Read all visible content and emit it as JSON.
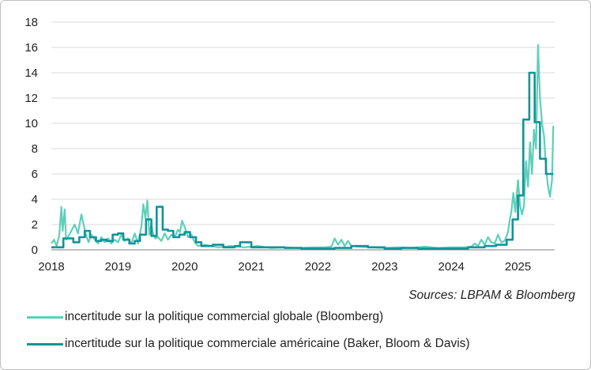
{
  "chart_data": {
    "type": "line",
    "ylim": [
      0,
      18
    ],
    "yticks": [
      "0",
      "2",
      "4",
      "6",
      "8",
      "10",
      "12",
      "14",
      "16",
      "18"
    ],
    "xlim": [
      2018.0,
      2025.55
    ],
    "xticks": [
      "2018",
      "2019",
      "2020",
      "2021",
      "2022",
      "2023",
      "2024",
      "2025"
    ],
    "grid": "horizontal",
    "legend_position": "bottom-left",
    "series": [
      {
        "name": "incertitude sur la politique commercial globale (Bloomberg)",
        "color": "#5fcfb8",
        "x": [
          2018.0,
          2018.04,
          2018.08,
          2018.12,
          2018.15,
          2018.17,
          2018.2,
          2018.22,
          2018.25,
          2018.3,
          2018.35,
          2018.4,
          2018.45,
          2018.5,
          2018.53,
          2018.56,
          2018.6,
          2018.65,
          2018.7,
          2018.75,
          2018.8,
          2018.85,
          2018.9,
          2018.95,
          2019.0,
          2019.05,
          2019.1,
          2019.15,
          2019.2,
          2019.25,
          2019.3,
          2019.35,
          2019.38,
          2019.41,
          2019.44,
          2019.47,
          2019.5,
          2019.53,
          2019.56,
          2019.6,
          2019.65,
          2019.7,
          2019.75,
          2019.8,
          2019.85,
          2019.9,
          2019.93,
          2019.96,
          2020.0,
          2020.05,
          2020.1,
          2020.15,
          2020.2,
          2020.3,
          2020.5,
          2020.7,
          2020.9,
          2021.1,
          2021.3,
          2021.5,
          2021.7,
          2021.9,
          2022.1,
          2022.2,
          2022.25,
          2022.3,
          2022.35,
          2022.4,
          2022.45,
          2022.5,
          2022.6,
          2022.8,
          2023.0,
          2023.2,
          2023.4,
          2023.6,
          2023.8,
          2024.0,
          2024.2,
          2024.3,
          2024.35,
          2024.4,
          2024.45,
          2024.5,
          2024.55,
          2024.6,
          2024.65,
          2024.7,
          2024.75,
          2024.8,
          2024.85,
          2024.88,
          2024.9,
          2024.93,
          2024.96,
          2025.0,
          2025.03,
          2025.06,
          2025.09,
          2025.12,
          2025.15,
          2025.18,
          2025.21,
          2025.24,
          2025.27,
          2025.3,
          2025.33,
          2025.36,
          2025.39,
          2025.42,
          2025.45,
          2025.48,
          2025.51,
          2025.53
        ],
        "values": [
          0.5,
          0.8,
          0.3,
          1.2,
          3.4,
          1.5,
          3.2,
          0.8,
          1.0,
          1.5,
          2.0,
          1.3,
          2.8,
          1.6,
          1.0,
          0.6,
          1.2,
          0.8,
          0.5,
          1.0,
          0.6,
          0.9,
          0.5,
          0.8,
          0.6,
          1.2,
          0.7,
          0.9,
          0.5,
          1.3,
          0.5,
          1.8,
          3.6,
          2.5,
          3.9,
          1.2,
          2.0,
          1.2,
          0.9,
          1.0,
          0.7,
          1.3,
          0.8,
          1.2,
          1.0,
          1.6,
          1.4,
          2.3,
          1.8,
          1.0,
          1.2,
          0.6,
          0.3,
          0.4,
          0.2,
          0.3,
          0.2,
          0.3,
          0.15,
          0.2,
          0.15,
          0.2,
          0.2,
          0.25,
          0.9,
          0.4,
          0.8,
          0.3,
          0.7,
          0.3,
          0.25,
          0.2,
          0.15,
          0.2,
          0.15,
          0.25,
          0.15,
          0.2,
          0.2,
          0.25,
          0.5,
          0.3,
          0.8,
          0.4,
          1.0,
          0.6,
          0.5,
          1.2,
          0.6,
          0.7,
          1.4,
          2.5,
          3.0,
          4.5,
          3.0,
          5.5,
          3.5,
          2.8,
          3.5,
          7.0,
          5.0,
          8.5,
          6.0,
          9.5,
          8.0,
          16.2,
          12.0,
          10.0,
          9.0,
          6.5,
          5.0,
          4.2,
          5.5,
          9.8
        ]
      },
      {
        "name": "incertitude sur la politique commerciale américaine (Baker, Bloom & Davis)",
        "color": "#12939a",
        "x": [
          2018.0,
          2018.18,
          2018.33,
          2018.42,
          2018.5,
          2018.58,
          2018.67,
          2018.75,
          2018.83,
          2018.92,
          2019.0,
          2019.08,
          2019.17,
          2019.25,
          2019.33,
          2019.42,
          2019.5,
          2019.58,
          2019.67,
          2019.75,
          2019.83,
          2019.92,
          2020.0,
          2020.08,
          2020.17,
          2020.25,
          2020.42,
          2020.58,
          2020.75,
          2020.83,
          2021.0,
          2021.25,
          2021.5,
          2021.75,
          2022.0,
          2022.25,
          2022.5,
          2022.75,
          2023.0,
          2023.25,
          2023.5,
          2023.75,
          2024.0,
          2024.25,
          2024.5,
          2024.67,
          2024.83,
          2024.92,
          2025.0,
          2025.08,
          2025.17,
          2025.25,
          2025.33,
          2025.42,
          2025.5,
          2025.53
        ],
        "values": [
          0.2,
          0.9,
          0.6,
          1.0,
          1.5,
          1.0,
          0.7,
          0.8,
          0.7,
          1.2,
          1.3,
          0.8,
          0.5,
          0.7,
          1.2,
          2.4,
          1.1,
          3.4,
          1.6,
          1.5,
          1.0,
          1.2,
          1.4,
          1.0,
          0.6,
          0.3,
          0.4,
          0.2,
          0.3,
          0.6,
          0.2,
          0.2,
          0.15,
          0.1,
          0.1,
          0.15,
          0.3,
          0.2,
          0.1,
          0.15,
          0.1,
          0.1,
          0.1,
          0.2,
          0.3,
          0.4,
          0.8,
          2.4,
          4.3,
          10.3,
          14.0,
          10.1,
          7.2,
          6.0,
          6.0,
          6.0
        ]
      }
    ]
  },
  "source": "Sources: LBPAM & Bloomberg",
  "legend": {
    "item1": "incertitude sur la politique commercial globale (Bloomberg)",
    "item2": "incertitude sur la politique commerciale américaine (Baker, Bloom & Davis)"
  }
}
